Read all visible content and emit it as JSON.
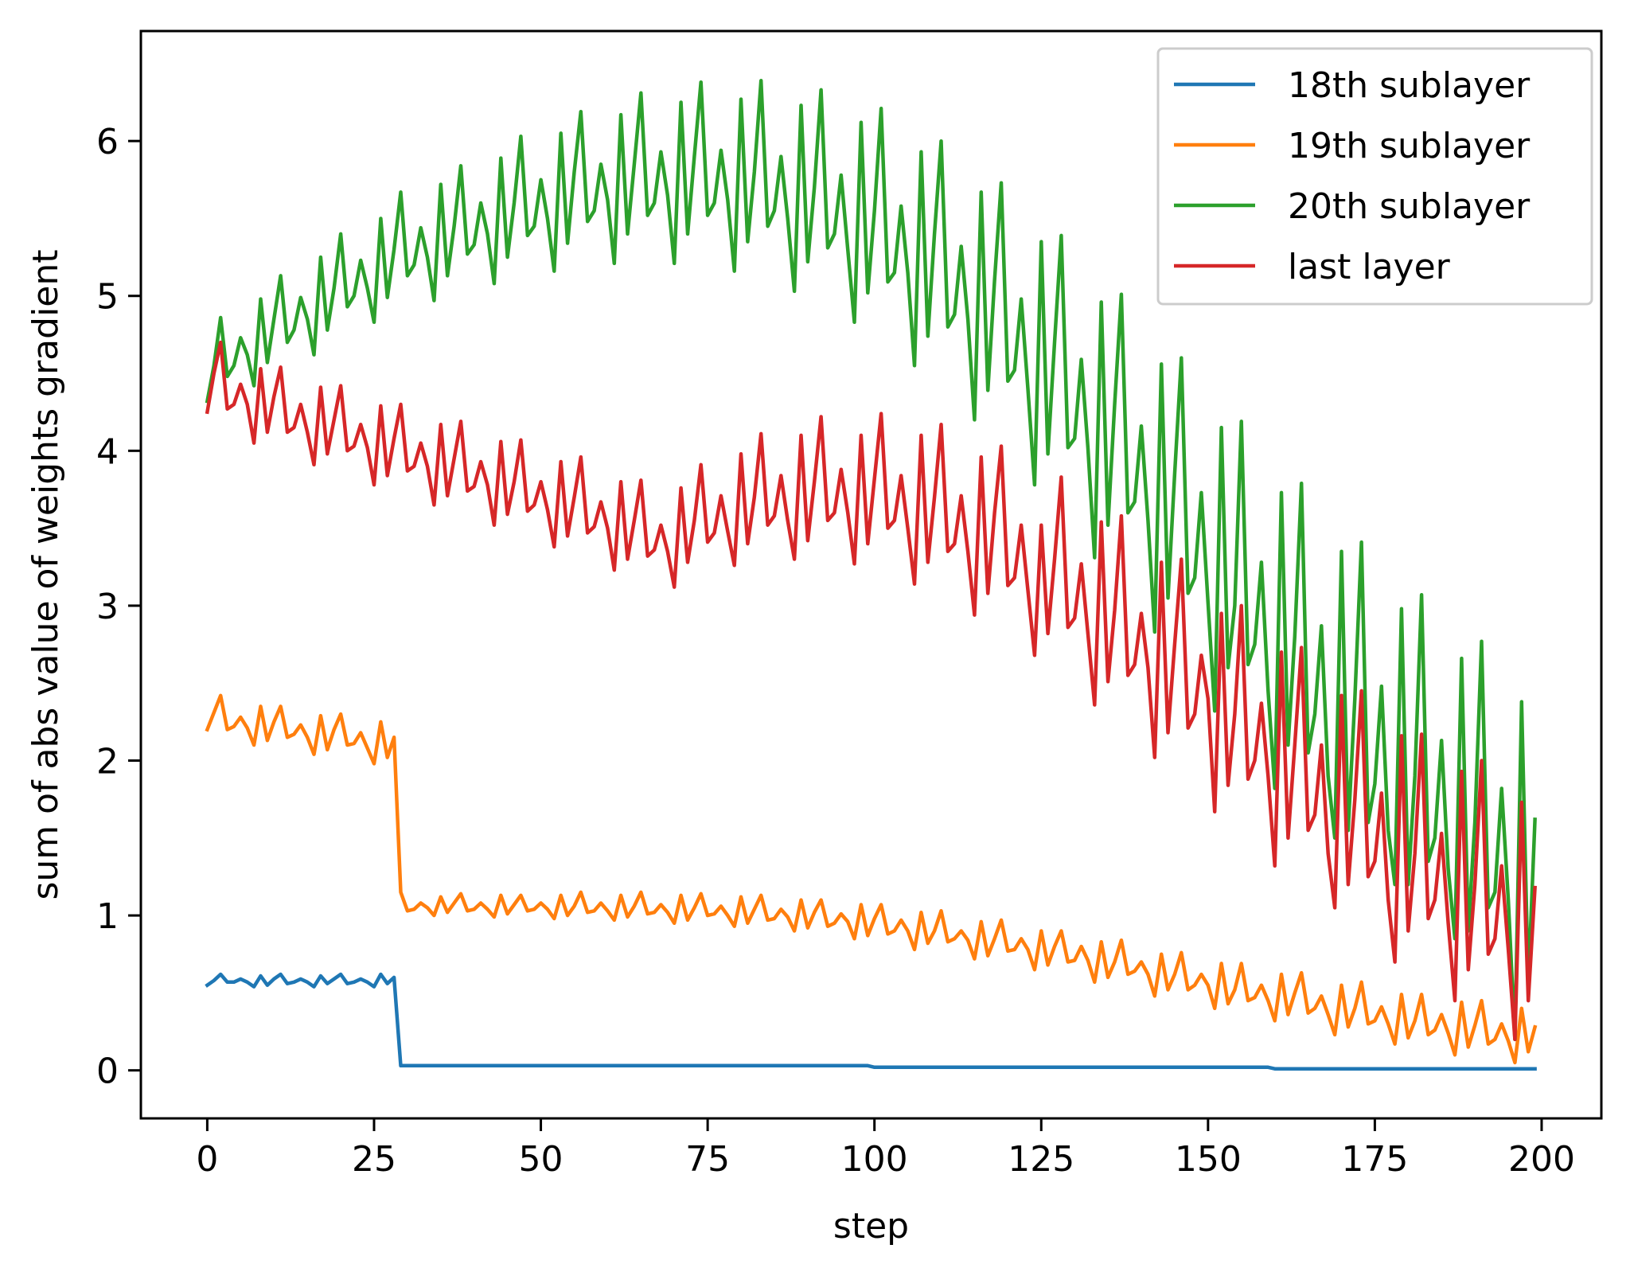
{
  "chart_data": {
    "type": "line",
    "title": "",
    "xlabel": "step",
    "ylabel": "sum of abs value of weights gradient",
    "xlim": [
      -9.95,
      208.95
    ],
    "ylim": [
      -0.31,
      6.71
    ],
    "xticks": [
      0,
      25,
      50,
      75,
      100,
      125,
      150,
      175,
      200
    ],
    "xtick_labels": [
      "0",
      "25",
      "50",
      "75",
      "100",
      "125",
      "150",
      "175",
      "200"
    ],
    "yticks": [
      0,
      1,
      2,
      3,
      4,
      5,
      6
    ],
    "ytick_labels": [
      "0",
      "1",
      "2",
      "3",
      "4",
      "5",
      "6"
    ],
    "grid": false,
    "legend_position": "top-right",
    "x_start": 0,
    "x_step": 1,
    "series": [
      {
        "name": "18th sublayer",
        "color": "#1f77b4",
        "values": [
          0.55,
          0.58,
          0.62,
          0.57,
          0.57,
          0.59,
          0.57,
          0.54,
          0.61,
          0.55,
          0.59,
          0.62,
          0.56,
          0.57,
          0.59,
          0.57,
          0.54,
          0.61,
          0.56,
          0.59,
          0.62,
          0.56,
          0.57,
          0.59,
          0.57,
          0.54,
          0.62,
          0.56,
          0.6,
          0.03,
          0.03,
          0.03,
          0.03,
          0.03,
          0.03,
          0.03,
          0.03,
          0.03,
          0.03,
          0.03,
          0.03,
          0.03,
          0.03,
          0.03,
          0.03,
          0.03,
          0.03,
          0.03,
          0.03,
          0.03,
          0.03,
          0.03,
          0.03,
          0.03,
          0.03,
          0.03,
          0.03,
          0.03,
          0.03,
          0.03,
          0.03,
          0.03,
          0.03,
          0.03,
          0.03,
          0.03,
          0.03,
          0.03,
          0.03,
          0.03,
          0.03,
          0.03,
          0.03,
          0.03,
          0.03,
          0.03,
          0.03,
          0.03,
          0.03,
          0.03,
          0.03,
          0.03,
          0.03,
          0.03,
          0.03,
          0.03,
          0.03,
          0.03,
          0.03,
          0.03,
          0.03,
          0.03,
          0.03,
          0.03,
          0.03,
          0.03,
          0.03,
          0.03,
          0.03,
          0.03,
          0.02,
          0.02,
          0.02,
          0.02,
          0.02,
          0.02,
          0.02,
          0.02,
          0.02,
          0.02,
          0.02,
          0.02,
          0.02,
          0.02,
          0.02,
          0.02,
          0.02,
          0.02,
          0.02,
          0.02,
          0.02,
          0.02,
          0.02,
          0.02,
          0.02,
          0.02,
          0.02,
          0.02,
          0.02,
          0.02,
          0.02,
          0.02,
          0.02,
          0.02,
          0.02,
          0.02,
          0.02,
          0.02,
          0.02,
          0.02,
          0.02,
          0.02,
          0.02,
          0.02,
          0.02,
          0.02,
          0.02,
          0.02,
          0.02,
          0.02,
          0.02,
          0.02,
          0.02,
          0.02,
          0.02,
          0.02,
          0.02,
          0.02,
          0.02,
          0.02,
          0.01,
          0.01,
          0.01,
          0.01,
          0.01,
          0.01,
          0.01,
          0.01,
          0.01,
          0.01,
          0.01,
          0.01,
          0.01,
          0.01,
          0.01,
          0.01,
          0.01,
          0.01,
          0.01,
          0.01,
          0.01,
          0.01,
          0.01,
          0.01,
          0.01,
          0.01,
          0.01,
          0.01,
          0.01,
          0.01,
          0.01,
          0.01,
          0.01,
          0.01,
          0.01,
          0.01,
          0.01,
          0.01,
          0.01,
          0.01
        ]
      },
      {
        "name": "19th sublayer",
        "color": "#ff7f0e",
        "values": [
          2.2,
          2.31,
          2.42,
          2.2,
          2.22,
          2.28,
          2.21,
          2.1,
          2.35,
          2.13,
          2.25,
          2.35,
          2.15,
          2.17,
          2.23,
          2.15,
          2.04,
          2.29,
          2.07,
          2.2,
          2.3,
          2.1,
          2.11,
          2.18,
          2.08,
          1.98,
          2.25,
          2.02,
          2.15,
          1.15,
          1.03,
          1.04,
          1.08,
          1.05,
          1.0,
          1.12,
          1.02,
          1.08,
          1.14,
          1.03,
          1.04,
          1.08,
          1.04,
          0.99,
          1.13,
          1.01,
          1.07,
          1.13,
          1.03,
          1.04,
          1.08,
          1.04,
          0.98,
          1.13,
          1.0,
          1.06,
          1.15,
          1.02,
          1.03,
          1.08,
          1.03,
          0.97,
          1.13,
          0.99,
          1.06,
          1.15,
          1.01,
          1.02,
          1.07,
          1.02,
          0.95,
          1.13,
          0.97,
          1.05,
          1.14,
          1.0,
          1.01,
          1.06,
          1.0,
          0.93,
          1.12,
          0.95,
          1.04,
          1.13,
          0.97,
          0.98,
          1.04,
          0.99,
          0.9,
          1.1,
          0.92,
          1.02,
          1.1,
          0.93,
          0.95,
          1.01,
          0.96,
          0.85,
          1.07,
          0.87,
          0.98,
          1.07,
          0.88,
          0.9,
          0.97,
          0.9,
          0.78,
          1.02,
          0.82,
          0.9,
          1.03,
          0.83,
          0.85,
          0.9,
          0.84,
          0.72,
          0.96,
          0.74,
          0.85,
          0.97,
          0.77,
          0.78,
          0.85,
          0.78,
          0.65,
          0.9,
          0.68,
          0.8,
          0.9,
          0.7,
          0.71,
          0.8,
          0.71,
          0.57,
          0.83,
          0.6,
          0.7,
          0.84,
          0.62,
          0.64,
          0.7,
          0.62,
          0.48,
          0.75,
          0.52,
          0.62,
          0.76,
          0.52,
          0.55,
          0.62,
          0.55,
          0.4,
          0.69,
          0.43,
          0.52,
          0.69,
          0.45,
          0.47,
          0.55,
          0.45,
          0.32,
          0.62,
          0.36,
          0.5,
          0.63,
          0.37,
          0.4,
          0.48,
          0.36,
          0.23,
          0.55,
          0.28,
          0.4,
          0.57,
          0.3,
          0.32,
          0.41,
          0.3,
          0.17,
          0.49,
          0.21,
          0.32,
          0.49,
          0.23,
          0.26,
          0.36,
          0.24,
          0.1,
          0.44,
          0.15,
          0.29,
          0.45,
          0.17,
          0.2,
          0.3,
          0.19,
          0.05,
          0.4,
          0.12,
          0.28
        ]
      },
      {
        "name": "20th sublayer",
        "color": "#2ca02c",
        "values": [
          4.32,
          4.55,
          4.86,
          4.48,
          4.55,
          4.73,
          4.62,
          4.42,
          4.98,
          4.57,
          4.85,
          5.13,
          4.7,
          4.78,
          4.99,
          4.85,
          4.62,
          5.25,
          4.78,
          5.05,
          5.4,
          4.93,
          5.0,
          5.23,
          5.05,
          4.83,
          5.5,
          4.99,
          5.3,
          5.67,
          5.13,
          5.2,
          5.44,
          5.25,
          4.97,
          5.72,
          5.13,
          5.45,
          5.84,
          5.27,
          5.33,
          5.6,
          5.4,
          5.08,
          5.89,
          5.25,
          5.6,
          6.03,
          5.39,
          5.45,
          5.75,
          5.5,
          5.16,
          6.05,
          5.34,
          5.8,
          6.19,
          5.48,
          5.55,
          5.85,
          5.62,
          5.21,
          6.17,
          5.4,
          5.85,
          6.31,
          5.52,
          5.6,
          5.93,
          5.65,
          5.21,
          6.25,
          5.4,
          5.9,
          6.38,
          5.52,
          5.6,
          5.94,
          5.62,
          5.16,
          6.27,
          5.35,
          5.8,
          6.39,
          5.45,
          5.55,
          5.9,
          5.5,
          5.03,
          6.23,
          5.22,
          5.7,
          6.33,
          5.31,
          5.4,
          5.78,
          5.3,
          4.83,
          6.12,
          5.02,
          5.55,
          6.21,
          5.09,
          5.15,
          5.58,
          5.15,
          4.55,
          5.93,
          4.74,
          5.4,
          6.0,
          4.8,
          4.88,
          5.32,
          4.85,
          4.2,
          5.67,
          4.39,
          5.1,
          5.73,
          4.45,
          4.52,
          4.98,
          4.4,
          3.78,
          5.35,
          3.98,
          4.7,
          5.39,
          4.02,
          4.08,
          4.59,
          4.02,
          3.31,
          4.96,
          3.52,
          4.3,
          5.01,
          3.6,
          3.67,
          4.16,
          3.55,
          2.83,
          4.56,
          3.05,
          3.85,
          4.6,
          3.08,
          3.18,
          3.73,
          3.02,
          2.32,
          4.15,
          2.6,
          3.0,
          4.19,
          2.62,
          2.75,
          3.28,
          2.45,
          1.82,
          3.73,
          2.1,
          2.8,
          3.79,
          2.05,
          2.3,
          2.87,
          1.9,
          1.5,
          3.35,
          1.55,
          2.4,
          3.41,
          1.6,
          1.85,
          2.48,
          1.55,
          1.2,
          2.98,
          1.2,
          1.9,
          3.07,
          1.35,
          1.5,
          2.13,
          1.3,
          0.85,
          2.66,
          0.9,
          1.6,
          2.77,
          1.05,
          1.15,
          1.82,
          1.1,
          0.2,
          2.38,
          0.55,
          1.62
        ]
      },
      {
        "name": "last layer",
        "color": "#d62728",
        "values": [
          4.25,
          4.5,
          4.7,
          4.27,
          4.3,
          4.43,
          4.3,
          4.05,
          4.53,
          4.12,
          4.35,
          4.54,
          4.12,
          4.15,
          4.3,
          4.12,
          3.91,
          4.41,
          3.98,
          4.2,
          4.42,
          4.0,
          4.03,
          4.17,
          4.02,
          3.78,
          4.29,
          3.84,
          4.08,
          4.3,
          3.87,
          3.9,
          4.05,
          3.9,
          3.65,
          4.17,
          3.71,
          3.95,
          4.19,
          3.74,
          3.77,
          3.93,
          3.78,
          3.52,
          4.06,
          3.59,
          3.8,
          4.07,
          3.61,
          3.65,
          3.8,
          3.62,
          3.38,
          3.93,
          3.45,
          3.7,
          3.96,
          3.47,
          3.51,
          3.67,
          3.5,
          3.23,
          3.8,
          3.3,
          3.55,
          3.81,
          3.32,
          3.36,
          3.52,
          3.35,
          3.12,
          3.76,
          3.28,
          3.55,
          3.91,
          3.41,
          3.47,
          3.71,
          3.48,
          3.26,
          3.98,
          3.4,
          3.7,
          4.11,
          3.52,
          3.58,
          3.84,
          3.55,
          3.3,
          4.1,
          3.42,
          3.8,
          4.22,
          3.55,
          3.6,
          3.88,
          3.6,
          3.27,
          4.1,
          3.4,
          3.82,
          4.24,
          3.5,
          3.55,
          3.84,
          3.5,
          3.14,
          4.1,
          3.28,
          3.7,
          4.17,
          3.35,
          3.4,
          3.71,
          3.35,
          2.94,
          3.96,
          3.08,
          3.6,
          4.03,
          3.13,
          3.18,
          3.52,
          3.1,
          2.68,
          3.52,
          2.82,
          3.3,
          3.83,
          2.86,
          2.92,
          3.27,
          2.82,
          2.36,
          3.54,
          2.51,
          2.97,
          3.58,
          2.55,
          2.62,
          2.95,
          2.6,
          2.02,
          3.28,
          2.18,
          2.75,
          3.3,
          2.21,
          2.3,
          2.68,
          2.4,
          1.67,
          2.95,
          1.84,
          2.3,
          3.0,
          1.88,
          2.0,
          2.37,
          1.9,
          1.32,
          2.7,
          1.5,
          2.1,
          2.73,
          1.55,
          1.65,
          2.1,
          1.4,
          1.05,
          2.42,
          1.2,
          1.75,
          2.45,
          1.25,
          1.35,
          1.79,
          1.1,
          0.7,
          2.16,
          0.9,
          1.4,
          2.17,
          0.98,
          1.1,
          1.53,
          0.95,
          0.45,
          1.93,
          0.65,
          1.2,
          2.0,
          0.75,
          0.85,
          1.32,
          0.78,
          0.2,
          1.73,
          0.45,
          1.18
        ]
      }
    ]
  }
}
